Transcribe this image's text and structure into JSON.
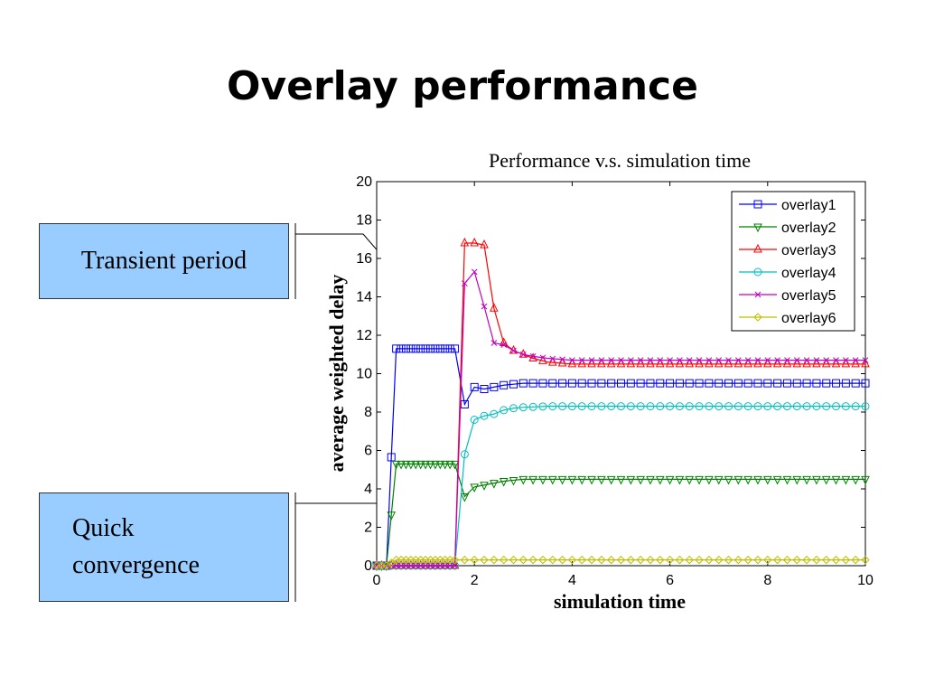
{
  "slide": {
    "title": "Overlay performance",
    "callouts": {
      "transient": "Transient period",
      "quick_line1": "Quick",
      "quick_line2": "convergence"
    }
  },
  "colors": {
    "overlay1": "#0000ff",
    "overlay2": "#008000",
    "overlay3": "#ff0000",
    "overlay4": "#00bfbf",
    "overlay5": "#bf00bf",
    "overlay6": "#bfbf00",
    "callout_fill": "#99ccff"
  },
  "chart_data": {
    "type": "line",
    "title": "Performance v.s. simulation time",
    "xlabel": "simulation time",
    "ylabel": "average weighted delay",
    "xlim": [
      0,
      10
    ],
    "ylim": [
      0,
      20
    ],
    "xticks": [
      0,
      2,
      4,
      6,
      8,
      10
    ],
    "yticks": [
      0,
      2,
      4,
      6,
      8,
      10,
      12,
      14,
      16,
      18,
      20
    ],
    "grid": false,
    "legend_position": "top-right",
    "series": [
      {
        "name": "overlay1",
        "marker": "square",
        "points": [
          [
            0,
            0
          ],
          [
            0.2,
            0
          ],
          [
            0.4,
            11.3
          ],
          [
            0.6,
            11.3
          ],
          [
            0.8,
            11.3
          ],
          [
            1.0,
            11.3
          ],
          [
            1.2,
            11.3
          ],
          [
            1.4,
            11.3
          ],
          [
            1.5,
            11.3
          ],
          [
            1.6,
            11.3
          ],
          [
            1.8,
            8.4
          ],
          [
            2.0,
            9.3
          ],
          [
            2.2,
            9.2
          ],
          [
            2.4,
            9.3
          ],
          [
            2.6,
            9.4
          ],
          [
            2.8,
            9.45
          ],
          [
            3.0,
            9.5
          ],
          [
            3.5,
            9.5
          ],
          [
            4,
            9.5
          ],
          [
            5,
            9.5
          ],
          [
            6,
            9.5
          ],
          [
            7,
            9.5
          ],
          [
            8,
            9.5
          ],
          [
            9,
            9.5
          ],
          [
            10,
            9.5
          ]
        ]
      },
      {
        "name": "overlay2",
        "marker": "triangle-down",
        "points": [
          [
            0,
            0
          ],
          [
            0.2,
            0
          ],
          [
            0.4,
            5.3
          ],
          [
            0.6,
            5.3
          ],
          [
            0.8,
            5.3
          ],
          [
            1.0,
            5.3
          ],
          [
            1.2,
            5.3
          ],
          [
            1.4,
            5.3
          ],
          [
            1.5,
            5.3
          ],
          [
            1.6,
            5.3
          ],
          [
            1.8,
            3.6
          ],
          [
            2.0,
            4.1
          ],
          [
            2.2,
            4.2
          ],
          [
            2.4,
            4.3
          ],
          [
            2.6,
            4.4
          ],
          [
            2.8,
            4.45
          ],
          [
            3.0,
            4.5
          ],
          [
            3.5,
            4.5
          ],
          [
            4,
            4.5
          ],
          [
            5,
            4.5
          ],
          [
            6,
            4.5
          ],
          [
            7,
            4.5
          ],
          [
            8,
            4.5
          ],
          [
            9,
            4.5
          ],
          [
            10,
            4.5
          ]
        ]
      },
      {
        "name": "overlay3",
        "marker": "triangle-up",
        "points": [
          [
            0,
            0
          ],
          [
            0.2,
            0
          ],
          [
            0.4,
            0
          ],
          [
            0.6,
            0
          ],
          [
            0.8,
            0
          ],
          [
            1.0,
            0
          ],
          [
            1.2,
            0
          ],
          [
            1.4,
            0
          ],
          [
            1.5,
            0
          ],
          [
            1.6,
            0
          ],
          [
            1.8,
            16.8
          ],
          [
            2.0,
            16.8
          ],
          [
            2.2,
            16.7
          ],
          [
            2.4,
            13.4
          ],
          [
            2.6,
            11.6
          ],
          [
            2.8,
            11.2
          ],
          [
            3.0,
            11.0
          ],
          [
            3.2,
            10.8
          ],
          [
            3.5,
            10.6
          ],
          [
            4,
            10.5
          ],
          [
            5,
            10.5
          ],
          [
            6,
            10.5
          ],
          [
            7,
            10.5
          ],
          [
            8,
            10.5
          ],
          [
            9,
            10.5
          ],
          [
            10,
            10.5
          ]
        ]
      },
      {
        "name": "overlay4",
        "marker": "circle",
        "points": [
          [
            0,
            0
          ],
          [
            0.2,
            0
          ],
          [
            0.4,
            0
          ],
          [
            0.6,
            0
          ],
          [
            0.8,
            0
          ],
          [
            1.0,
            0
          ],
          [
            1.2,
            0
          ],
          [
            1.4,
            0
          ],
          [
            1.5,
            0
          ],
          [
            1.6,
            0
          ],
          [
            1.8,
            5.8
          ],
          [
            2.0,
            7.6
          ],
          [
            2.2,
            7.8
          ],
          [
            2.4,
            7.9
          ],
          [
            2.6,
            8.1
          ],
          [
            2.8,
            8.2
          ],
          [
            3.0,
            8.25
          ],
          [
            3.5,
            8.3
          ],
          [
            4,
            8.3
          ],
          [
            5,
            8.3
          ],
          [
            6,
            8.3
          ],
          [
            7,
            8.3
          ],
          [
            8,
            8.3
          ],
          [
            9,
            8.3
          ],
          [
            10,
            8.3
          ]
        ]
      },
      {
        "name": "overlay5",
        "marker": "x",
        "points": [
          [
            0,
            0
          ],
          [
            0.2,
            0
          ],
          [
            0.4,
            0
          ],
          [
            0.6,
            0
          ],
          [
            0.8,
            0
          ],
          [
            1.0,
            0
          ],
          [
            1.2,
            0
          ],
          [
            1.4,
            0
          ],
          [
            1.5,
            0
          ],
          [
            1.6,
            0
          ],
          [
            1.8,
            14.7
          ],
          [
            2.0,
            15.3
          ],
          [
            2.2,
            13.5
          ],
          [
            2.4,
            11.6
          ],
          [
            2.6,
            11.5
          ],
          [
            2.8,
            11.2
          ],
          [
            3.0,
            11.0
          ],
          [
            3.2,
            10.9
          ],
          [
            3.5,
            10.8
          ],
          [
            4,
            10.7
          ],
          [
            5,
            10.7
          ],
          [
            6,
            10.7
          ],
          [
            7,
            10.7
          ],
          [
            8,
            10.7
          ],
          [
            9,
            10.7
          ],
          [
            10,
            10.7
          ]
        ]
      },
      {
        "name": "overlay6",
        "marker": "diamond",
        "points": [
          [
            0,
            0
          ],
          [
            0.2,
            0
          ],
          [
            0.4,
            0.3
          ],
          [
            0.6,
            0.3
          ],
          [
            0.8,
            0.3
          ],
          [
            1.0,
            0.3
          ],
          [
            1.2,
            0.3
          ],
          [
            1.4,
            0.3
          ],
          [
            1.5,
            0.3
          ],
          [
            1.6,
            0.3
          ],
          [
            1.8,
            0.3
          ],
          [
            2.0,
            0.3
          ],
          [
            2.5,
            0.3
          ],
          [
            3,
            0.3
          ],
          [
            4,
            0.3
          ],
          [
            5,
            0.3
          ],
          [
            6,
            0.3
          ],
          [
            7,
            0.3
          ],
          [
            8,
            0.3
          ],
          [
            9,
            0.3
          ],
          [
            10,
            0.3
          ]
        ]
      }
    ]
  }
}
